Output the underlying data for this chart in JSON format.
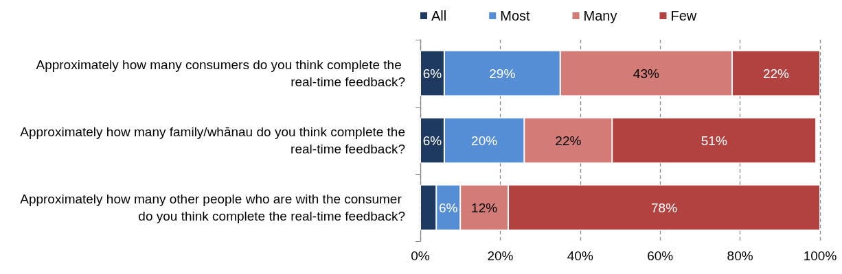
{
  "chart_data": {
    "type": "bar",
    "orientation": "horizontal",
    "stacked": true,
    "categories": [
      "Approximately how many consumers do you think complete the real-time feedback?",
      "Approximately how many family/whānau do you think complete the real-time feedback?",
      "Approximately how many other people who are with the consumer do you think complete the real-time feedback?"
    ],
    "series": [
      {
        "name": "All",
        "color": "#1f3a60",
        "values": [
          6,
          6,
          4
        ],
        "value_labels": [
          "6%",
          "6%",
          null
        ]
      },
      {
        "name": "Most",
        "color": "#558ed5",
        "values": [
          29,
          20,
          6
        ],
        "value_labels": [
          "29%",
          "20%",
          "6%"
        ]
      },
      {
        "name": "Many",
        "color": "#d27b77",
        "values": [
          43,
          22,
          12
        ],
        "value_labels": [
          "43%",
          "22%",
          "12%"
        ]
      },
      {
        "name": "Few",
        "color": "#b14240",
        "values": [
          22,
          51,
          78
        ],
        "value_labels": [
          "22%",
          "51%",
          "78%"
        ]
      }
    ],
    "xlim": [
      0,
      100
    ],
    "xticks": [
      {
        "value": 0,
        "label": "0%"
      },
      {
        "value": 20,
        "label": "20%"
      },
      {
        "value": 40,
        "label": "40%"
      },
      {
        "value": 60,
        "label": "60%"
      },
      {
        "value": 80,
        "label": "80%"
      },
      {
        "value": 100,
        "label": "100%"
      }
    ],
    "grid": "x",
    "legend": "top"
  }
}
